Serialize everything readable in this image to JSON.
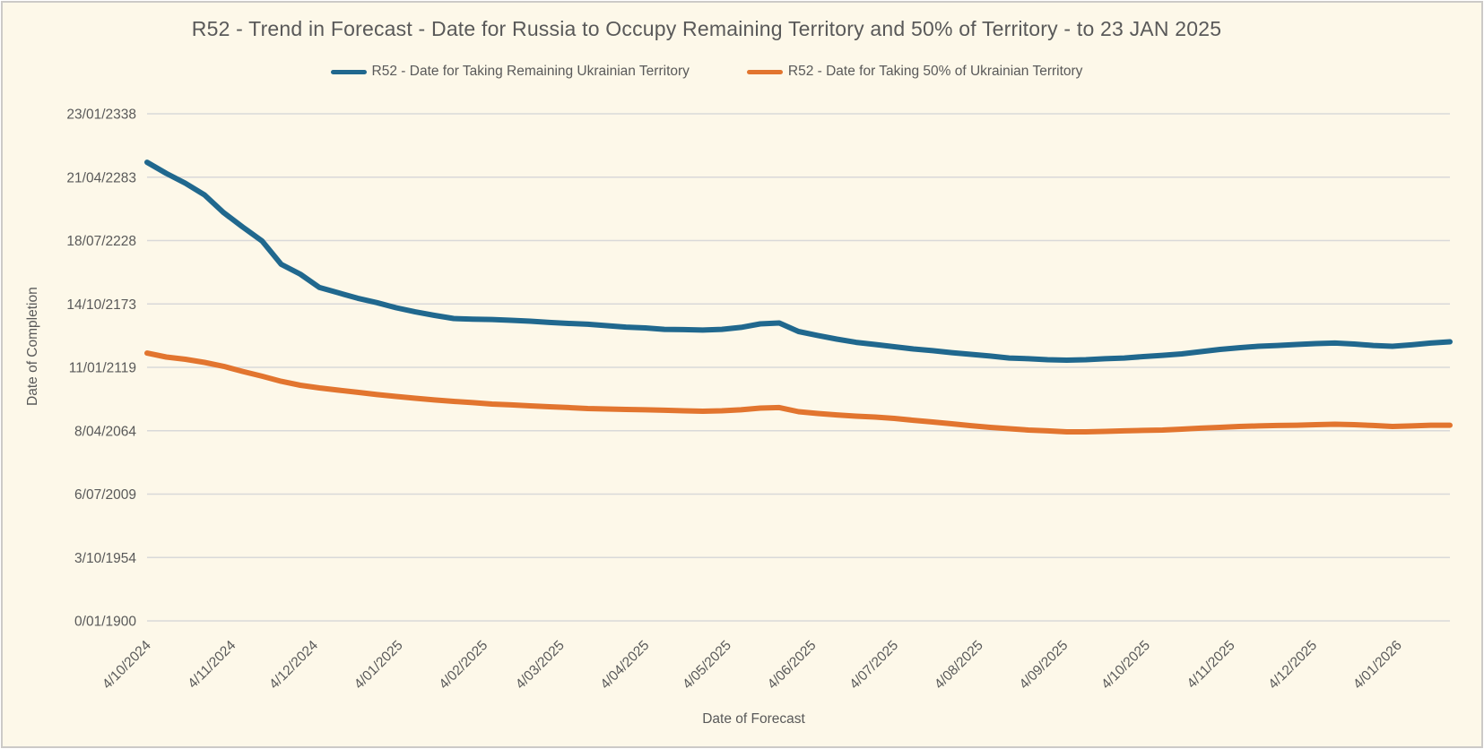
{
  "page": {
    "background": "#fdf8e9",
    "border_color": "#cccac7",
    "text_color": "#595959",
    "gridline_color": "#d9d9d9"
  },
  "chart": {
    "title": "R52 - Trend in Forecast - Date for Russia to Occupy Remaining Territory and 50% of Territory - to 23 JAN 2025",
    "x_axis_title": "Date of Forecast",
    "y_axis_title": "Date of Completion"
  },
  "legend": {
    "items": [
      {
        "label": "R52 - Date for Taking Remaining Ukrainian Territory",
        "color": "#20688e"
      },
      {
        "label": "R52 - Date for Taking  50% of Ukrainian Territory",
        "color": "#e2752f"
      }
    ]
  },
  "chart_data": {
    "type": "line",
    "title": "R52 - Trend in Forecast - Date for Russia to Occupy Remaining Territory and 50% of Territory - to 23 JAN 2025",
    "xlabel": "Date of Forecast",
    "ylabel": "Date of Completion",
    "grid": "horizontal",
    "legend_position": "top",
    "y_unit": "date as day serial (days since 0/01/1900)",
    "ylim": [
      0,
      160000
    ],
    "y_ticks": [
      {
        "serial": 0,
        "label": "0/01/1900"
      },
      {
        "serial": 20000,
        "label": "3/10/1954"
      },
      {
        "serial": 40000,
        "label": "6/07/2009"
      },
      {
        "serial": 60000,
        "label": "8/04/2064"
      },
      {
        "serial": 80000,
        "label": "11/01/2119"
      },
      {
        "serial": 100000,
        "label": "14/10/2173"
      },
      {
        "serial": 120000,
        "label": "18/07/2228"
      },
      {
        "serial": 140000,
        "label": "21/04/2283"
      },
      {
        "serial": 160000,
        "label": "23/01/2338"
      }
    ],
    "x_total_days": 476,
    "x_ticks": [
      {
        "label": "4/10/2024",
        "day": 0
      },
      {
        "label": "4/11/2024",
        "day": 31
      },
      {
        "label": "4/12/2024",
        "day": 61
      },
      {
        "label": "4/01/2025",
        "day": 92
      },
      {
        "label": "4/02/2025",
        "day": 123
      },
      {
        "label": "4/03/2025",
        "day": 151
      },
      {
        "label": "4/04/2025",
        "day": 182
      },
      {
        "label": "4/05/2025",
        "day": 212
      },
      {
        "label": "4/06/2025",
        "day": 243
      },
      {
        "label": "4/07/2025",
        "day": 273
      },
      {
        "label": "4/08/2025",
        "day": 304
      },
      {
        "label": "4/09/2025",
        "day": 335
      },
      {
        "label": "4/10/2025",
        "day": 365
      },
      {
        "label": "4/11/2025",
        "day": 396
      },
      {
        "label": "4/12/2025",
        "day": 426
      },
      {
        "label": "4/01/2026",
        "day": 457
      }
    ],
    "x_days": [
      0,
      7,
      14,
      21,
      28,
      35,
      42,
      49,
      56,
      63,
      70,
      77,
      84,
      91,
      98,
      105,
      112,
      119,
      126,
      133,
      140,
      147,
      154,
      161,
      168,
      175,
      182,
      189,
      196,
      203,
      210,
      217,
      224,
      231,
      238,
      245,
      252,
      259,
      266,
      273,
      280,
      287,
      294,
      301,
      308,
      315,
      322,
      329,
      336,
      343,
      350,
      357,
      364,
      371,
      378,
      385,
      392,
      399,
      406,
      413,
      420,
      427,
      434,
      441,
      448,
      455,
      462,
      469,
      476
    ],
    "series": [
      {
        "name": "R52 - Date for Taking Remaining Ukrainian Territory",
        "color": "#20688e",
        "stroke_width": 6,
        "values": [
          144700,
          141200,
          138100,
          134400,
          128800,
          124250,
          119900,
          112500,
          109400,
          105200,
          103500,
          101800,
          100400,
          98800,
          97500,
          96400,
          95400,
          95200,
          95100,
          94850,
          94550,
          94150,
          93850,
          93600,
          93150,
          92700,
          92450,
          92000,
          91900,
          91750,
          92000,
          92600,
          93700,
          94000,
          91300,
          90050,
          88900,
          87900,
          87200,
          86500,
          85800,
          85250,
          84650,
          84100,
          83550,
          82950,
          82700,
          82400,
          82250,
          82400,
          82700,
          82950,
          83400,
          83800,
          84250,
          84950,
          85650,
          86200,
          86650,
          86900,
          87200,
          87500,
          87650,
          87350,
          86900,
          86650,
          87100,
          87650,
          88050
        ]
      },
      {
        "name": "R52 - Date for Taking  50% of Ukrainian Territory",
        "color": "#e2752f",
        "stroke_width": 6,
        "values": [
          84500,
          83250,
          82550,
          81550,
          80300,
          78700,
          77200,
          75600,
          74350,
          73500,
          72800,
          72100,
          71400,
          70800,
          70250,
          69700,
          69250,
          68850,
          68400,
          68150,
          67850,
          67550,
          67300,
          67000,
          66850,
          66700,
          66600,
          66450,
          66300,
          66150,
          66300,
          66600,
          67150,
          67300,
          66000,
          65450,
          65000,
          64600,
          64300,
          63900,
          63300,
          62750,
          62200,
          61600,
          61050,
          60650,
          60200,
          59950,
          59650,
          59650,
          59800,
          59950,
          60100,
          60200,
          60500,
          60800,
          61050,
          61350,
          61500,
          61650,
          61750,
          61900,
          62050,
          61900,
          61650,
          61350,
          61500,
          61750,
          61750
        ]
      }
    ]
  }
}
